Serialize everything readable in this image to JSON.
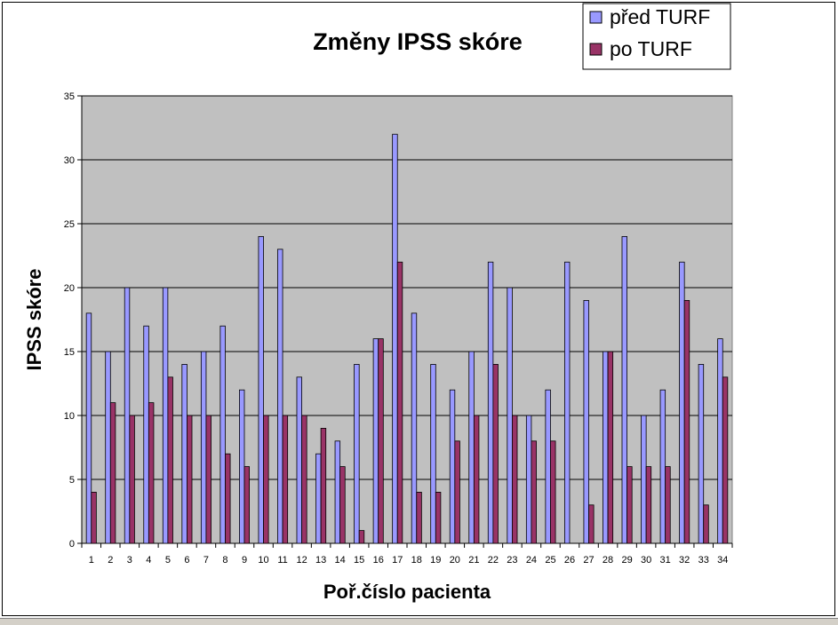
{
  "chart_data": {
    "type": "bar",
    "title": "Změny IPSS skóre",
    "xlabel": "Poř.číslo pacienta",
    "ylabel": "IPSS skóre",
    "categories": [
      "1",
      "2",
      "3",
      "4",
      "5",
      "6",
      "7",
      "8",
      "9",
      "10",
      "11",
      "12",
      "13",
      "14",
      "15",
      "16",
      "17",
      "18",
      "19",
      "20",
      "21",
      "22",
      "23",
      "24",
      "25",
      "26",
      "27",
      "28",
      "29",
      "30",
      "31",
      "32",
      "33",
      "34"
    ],
    "series": [
      {
        "name": "před TURF",
        "color": "#9999ff",
        "values": [
          18,
          15,
          20,
          17,
          20,
          14,
          15,
          17,
          12,
          24,
          23,
          13,
          7,
          8,
          14,
          16,
          32,
          18,
          14,
          12,
          15,
          22,
          20,
          10,
          12,
          22,
          19,
          15,
          24,
          10,
          12,
          22,
          14,
          16
        ]
      },
      {
        "name": "po TURF",
        "color": "#993366",
        "values": [
          4,
          11,
          10,
          11,
          13,
          10,
          10,
          7,
          6,
          10,
          10,
          10,
          9,
          6,
          1,
          16,
          22,
          4,
          4,
          8,
          10,
          14,
          10,
          8,
          8,
          0,
          3,
          15,
          6,
          6,
          6,
          19,
          3,
          13
        ]
      }
    ],
    "ylim": [
      0,
      35
    ],
    "yticks": [
      0,
      5,
      10,
      15,
      20,
      25,
      30,
      35
    ],
    "grid": true,
    "plot_background": "#c0c0c0",
    "legend_position": "top-right"
  }
}
